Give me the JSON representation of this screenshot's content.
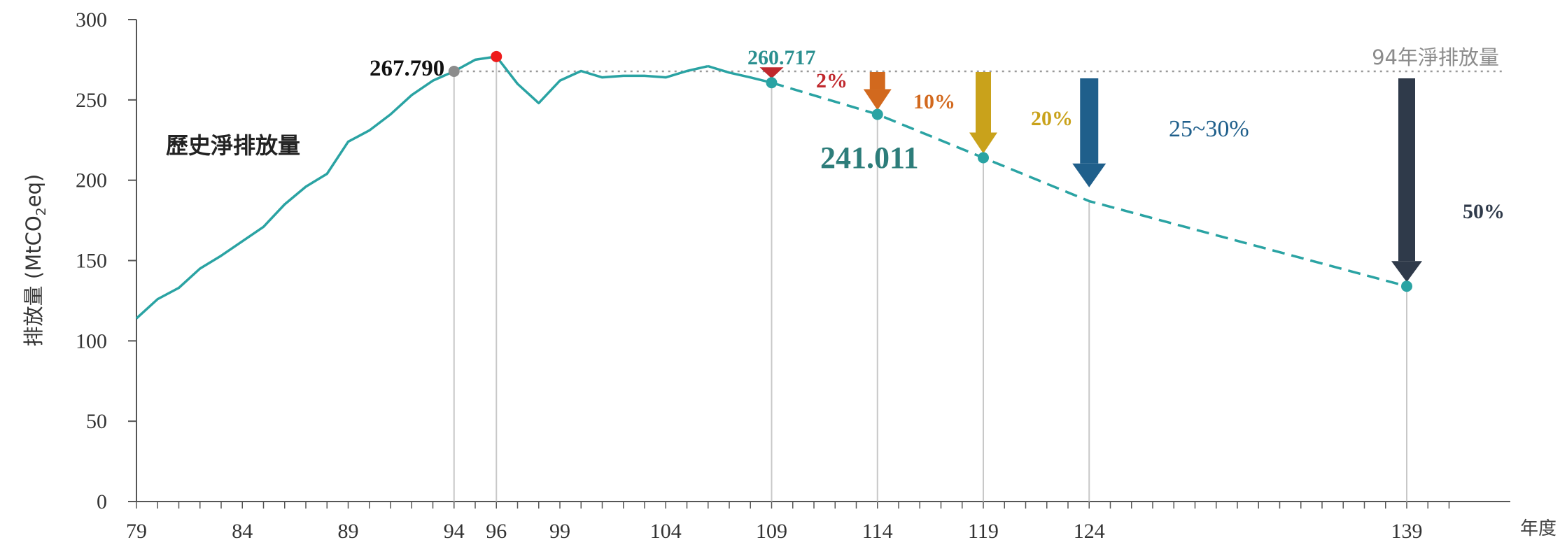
{
  "chart_data": {
    "type": "line",
    "title": "",
    "xlabel": "年度",
    "ylabel": "排放量 (MtCO2eq)",
    "ylabel_parts": {
      "main": "排放量 (MtCO",
      "sub": "2",
      "tail": "eq)"
    },
    "xlim": [
      79,
      141
    ],
    "ylim": [
      0,
      300
    ],
    "x_ticks": [
      79,
      84,
      89,
      94,
      96,
      99,
      104,
      109,
      114,
      119,
      124,
      139
    ],
    "y_ticks": [
      0,
      50,
      100,
      150,
      200,
      250,
      300
    ],
    "grid": false,
    "series": [
      {
        "name": "歷史淨排放量",
        "style": "solid",
        "color": "#2aa3a3",
        "x": [
          79,
          80,
          81,
          82,
          83,
          84,
          85,
          86,
          87,
          88,
          89,
          90,
          91,
          92,
          93,
          94,
          95,
          96,
          97,
          98,
          99,
          100,
          101,
          102,
          103,
          104,
          105,
          106
        ],
        "y": [
          114,
          126,
          133,
          145,
          153,
          162,
          171,
          185,
          196,
          204,
          224,
          231,
          241,
          253,
          262,
          267.79,
          275,
          277,
          260,
          248,
          262,
          268,
          264,
          265,
          265,
          264,
          268,
          271
        ]
      },
      {
        "name": "",
        "style": "solid",
        "color": "#2aa3a3",
        "x": [
          106,
          107,
          108,
          109
        ],
        "y": [
          271,
          267,
          264,
          260.717
        ]
      },
      {
        "name": "",
        "style": "dashed",
        "color": "#2aa3a3",
        "x": [
          109,
          114,
          119,
          124,
          139
        ],
        "y": [
          260.717,
          241.011,
          214,
          187,
          134
        ]
      }
    ],
    "reference_line": {
      "label": "94年淨排放量",
      "y": 267.79,
      "color": "#999999"
    },
    "points": [
      {
        "x": 94,
        "y": 267.79,
        "color": "#8c8c8c"
      },
      {
        "x": 96,
        "y": 277,
        "color": "#ee1c1c"
      },
      {
        "x": 109,
        "y": 260.717,
        "color": "#2aa3a3"
      },
      {
        "x": 114,
        "y": 241.011,
        "color": "#2aa3a3"
      },
      {
        "x": 119,
        "y": 214,
        "color": "#2aa3a3"
      },
      {
        "x": 139,
        "y": 134,
        "color": "#2aa3a3"
      }
    ],
    "vertical_guides": [
      94,
      96,
      109,
      114,
      119,
      124,
      139
    ],
    "reduction_arrows": [
      {
        "x": 109,
        "label": "2%",
        "color": "#c0282d",
        "to_y": 260.717
      },
      {
        "x": 114,
        "label": "10%",
        "color": "#d2691e",
        "to_y": 241.011
      },
      {
        "x": 119,
        "label": "20%",
        "color": "#c9a21b",
        "to_y": 214
      },
      {
        "x": 124,
        "label": "25~30%",
        "color": "#1f5f8b",
        "to_y": 193
      },
      {
        "x": 139,
        "label": "50%",
        "color": "#2f3a4a",
        "to_y": 134
      }
    ],
    "annotations": {
      "base_value": "267.790",
      "value_109": "260.717",
      "value_114": "241.011",
      "series_label": "歷史淨排放量"
    }
  }
}
